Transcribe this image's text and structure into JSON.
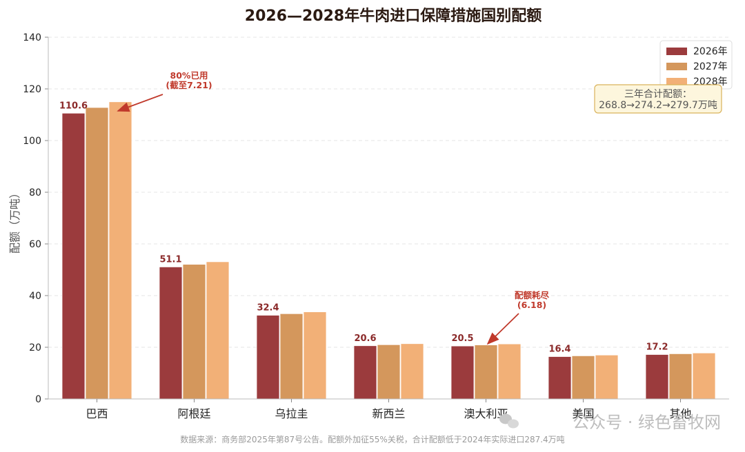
{
  "chart_data": {
    "type": "bar",
    "title": "2026—2028年牛肉进口保障措施国别配额",
    "ylabel": "配额（万吨）",
    "xlabel": "",
    "ylim": [
      0,
      140
    ],
    "yticks": [
      0,
      20,
      40,
      60,
      80,
      100,
      120,
      140
    ],
    "grid": true,
    "legend_position": "top-right",
    "categories": [
      "巴西",
      "阿根廷",
      "乌拉圭",
      "新西兰",
      "澳大利亚",
      "美国",
      "其他"
    ],
    "series": [
      {
        "name": "2026年",
        "color": "#9b3b3d",
        "values": [
          110.6,
          51.1,
          32.4,
          20.6,
          20.5,
          16.4,
          17.2
        ]
      },
      {
        "name": "2027年",
        "color": "#d4975c",
        "values": [
          112.8,
          52.1,
          33.0,
          21.0,
          20.9,
          16.7,
          17.5
        ]
      },
      {
        "name": "2028年",
        "color": "#f2b077",
        "values": [
          115.0,
          53.1,
          33.7,
          21.4,
          21.3,
          17.0,
          17.8
        ]
      }
    ],
    "data_labels": [
      "110.6",
      "51.1",
      "32.4",
      "20.6",
      "20.5",
      "16.4",
      "17.2"
    ],
    "annotations": [
      {
        "category": "巴西",
        "lines": [
          "80%已用",
          "(截至7.21)"
        ]
      },
      {
        "category": "澳大利亚",
        "lines": [
          "配额耗尽",
          "(6.18)"
        ]
      }
    ],
    "summary_box": [
      "三年合计配额：",
      "268.8→274.2→279.7万吨"
    ],
    "source": "数据来源：商务部2025年第87号公告。配额外加征55%关税，合计配额低于2024年实际进口287.4万吨"
  },
  "watermark": "公众号 · 绿色畜牧网"
}
